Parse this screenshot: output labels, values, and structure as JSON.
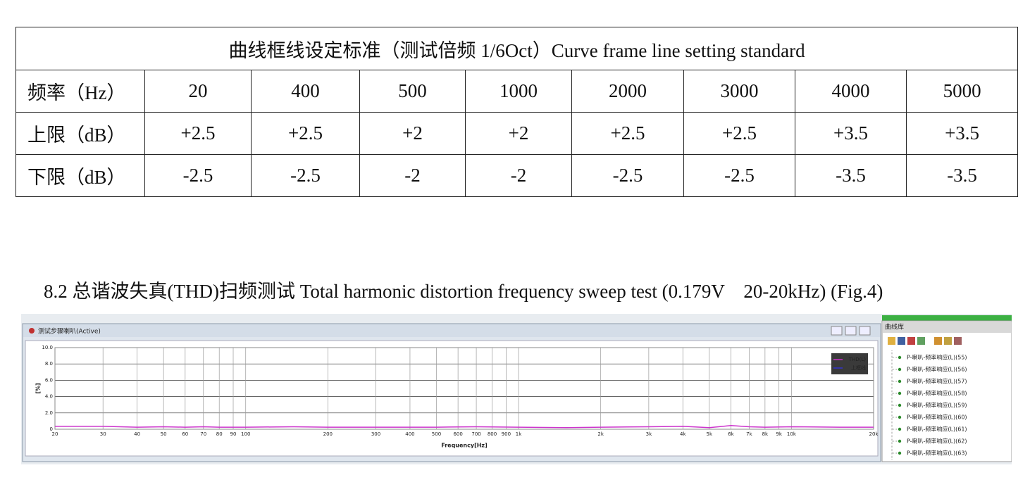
{
  "table": {
    "title": "曲线框线设定标准（测试倍频 1/6Oct）Curve frame line setting standard",
    "rows": [
      [
        "频率（Hz）",
        "20",
        "400",
        "500",
        "1000",
        "2000",
        "3000",
        "4000",
        "5000"
      ],
      [
        "上限（dB）",
        "+2.5",
        "+2.5",
        "+2",
        "+2",
        "+2.5",
        "+2.5",
        "+3.5",
        "+3.5"
      ],
      [
        "下限（dB）",
        "-2.5",
        "-2.5",
        "-2",
        "-2",
        "-2.5",
        "-2.5",
        "-3.5",
        "-3.5"
      ]
    ]
  },
  "section_title": "8.2 总谐波失真(THD)扫频测试 Total harmonic distortion frequency sweep test (0.179V　20-20kHz) (Fig.4)",
  "window_title": "测试步骤喇叭(Active)",
  "library": {
    "title": "曲线库",
    "items": [
      "P-喇叭-频率响应(L)(55)",
      "P-喇叭-频率响应(L)(56)",
      "P-喇叭-频率响应(L)(57)",
      "P-喇叭-频率响应(L)(58)",
      "P-喇叭-频率响应(L)(59)",
      "P-喇叭-频率响应(L)(60)",
      "P-喇叭-频率响应(L)(61)",
      "P-喇叭-频率响应(L)(62)",
      "P-喇叭-频率响应(L)(63)"
    ]
  },
  "chart_data": {
    "type": "line",
    "log_x": true,
    "grid": true,
    "xlabel": "Frequency[Hz]",
    "ylabel": "[%]",
    "xlim": [
      20,
      20000
    ],
    "ylim": [
      0,
      10
    ],
    "yticks": [
      0,
      {
        "value": 2,
        "label": "2.0"
      },
      {
        "value": 4,
        "label": "4.0"
      },
      {
        "value": 6,
        "label": "6.0"
      },
      {
        "value": 8,
        "label": "8.0"
      },
      {
        "value": 10,
        "label": "10.0"
      }
    ],
    "xticks": [
      20,
      30,
      40,
      50,
      60,
      70,
      80,
      90,
      100,
      200,
      300,
      400,
      500,
      600,
      700,
      800,
      900,
      {
        "value": 1000,
        "label": "1k"
      },
      {
        "value": 2000,
        "label": "2k"
      },
      {
        "value": 3000,
        "label": "3k"
      },
      {
        "value": 4000,
        "label": "4k"
      },
      {
        "value": 5000,
        "label": "5k"
      },
      {
        "value": 6000,
        "label": "6k"
      },
      {
        "value": 7000,
        "label": "7k"
      },
      {
        "value": 8000,
        "label": "8k"
      },
      {
        "value": 9000,
        "label": "9k"
      },
      {
        "value": 10000,
        "label": "10k"
      },
      {
        "value": 20000,
        "label": "20k"
      }
    ],
    "x": [
      20,
      30,
      40,
      50,
      60,
      70,
      80,
      100,
      150,
      200,
      300,
      500,
      700,
      1000,
      1500,
      2000,
      3000,
      4000,
      5000,
      6000,
      7000,
      8000,
      10000,
      15000,
      20000
    ],
    "series": [
      {
        "name": "THD(L)",
        "color": "#cc33cc",
        "values": [
          0.35,
          0.35,
          0.25,
          0.3,
          0.25,
          0.3,
          0.25,
          0.25,
          0.3,
          0.25,
          0.25,
          0.25,
          0.3,
          0.25,
          0.2,
          0.25,
          0.3,
          0.35,
          0.2,
          0.45,
          0.3,
          0.25,
          0.3,
          0.25,
          0.25
        ]
      },
      {
        "name": "上框线",
        "color": "#3333cc",
        "values": [
          null,
          null,
          null,
          null,
          null,
          null,
          null,
          null,
          null,
          null,
          null,
          null,
          null,
          null,
          null,
          null,
          null,
          null,
          null,
          null,
          null,
          null,
          null,
          null,
          null
        ]
      }
    ],
    "legend": "upper right"
  }
}
